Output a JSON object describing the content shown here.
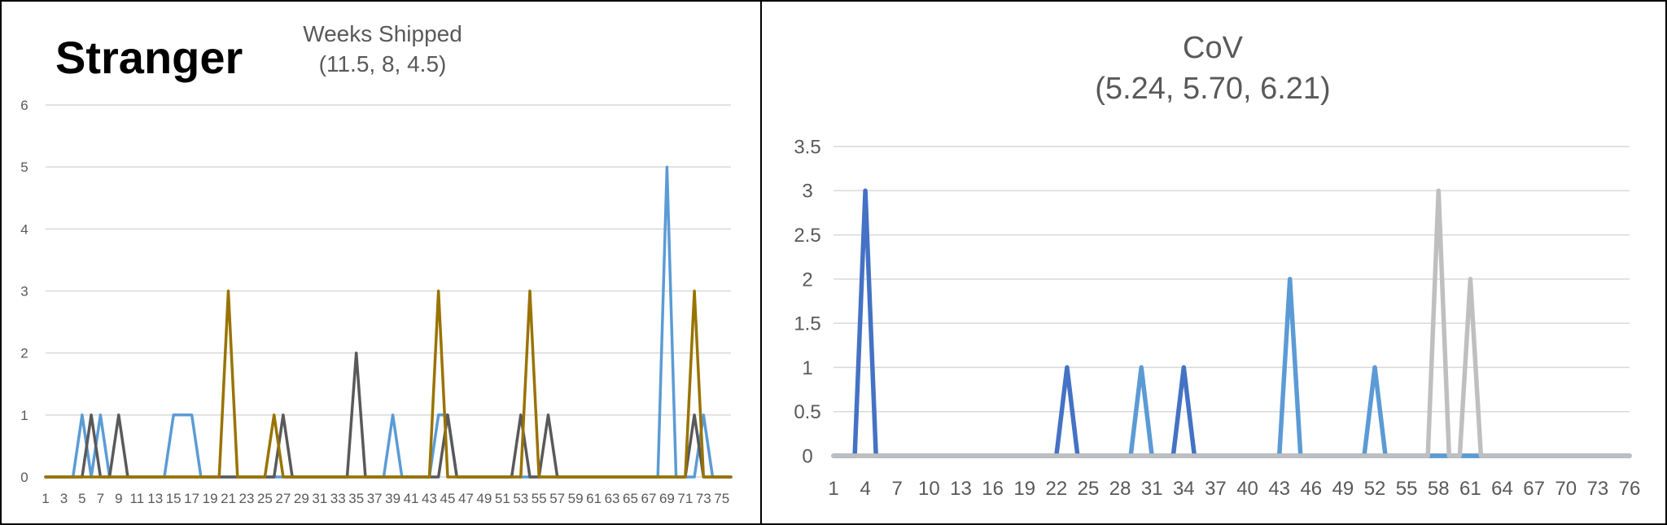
{
  "badge": "Stranger",
  "chart_data": [
    {
      "type": "line",
      "title": "Weeks Shipped",
      "subtitle": "(11.5, 8, 4.5)",
      "xlabel": "",
      "ylabel": "",
      "ylim": [
        0,
        6
      ],
      "yticks": [
        "0",
        "1",
        "2",
        "3",
        "4",
        "5",
        "6"
      ],
      "x": [
        1,
        2,
        3,
        4,
        5,
        6,
        7,
        8,
        9,
        10,
        11,
        12,
        13,
        14,
        15,
        16,
        17,
        18,
        19,
        20,
        21,
        22,
        23,
        24,
        25,
        26,
        27,
        28,
        29,
        30,
        31,
        32,
        33,
        34,
        35,
        36,
        37,
        38,
        39,
        40,
        41,
        42,
        43,
        44,
        45,
        46,
        47,
        48,
        49,
        50,
        51,
        52,
        53,
        54,
        55,
        56,
        57,
        58,
        59,
        60,
        61,
        62,
        63,
        64,
        65,
        66,
        67,
        68,
        69,
        70,
        71,
        72,
        73,
        74,
        75,
        76
      ],
      "xticks": [
        "1",
        "3",
        "5",
        "7",
        "9",
        "11",
        "13",
        "15",
        "17",
        "19",
        "21",
        "23",
        "25",
        "27",
        "29",
        "31",
        "33",
        "35",
        "37",
        "39",
        "41",
        "43",
        "45",
        "47",
        "49",
        "51",
        "53",
        "55",
        "57",
        "59",
        "61",
        "63",
        "65",
        "67",
        "69",
        "71",
        "73",
        "75"
      ],
      "grid": true,
      "series": [
        {
          "color": "#5B9BD5",
          "values": [
            0,
            0,
            0,
            0,
            1,
            0,
            1,
            0,
            0,
            0,
            0,
            0,
            0,
            0,
            1,
            1,
            1,
            0,
            0,
            0,
            0,
            0,
            0,
            0,
            0,
            0,
            0,
            0,
            0,
            0,
            0,
            0,
            0,
            0,
            0,
            0,
            0,
            0,
            1,
            0,
            0,
            0,
            0,
            1,
            1,
            0,
            0,
            0,
            0,
            0,
            0,
            0,
            0,
            0,
            0,
            0,
            0,
            0,
            0,
            0,
            0,
            0,
            0,
            0,
            0,
            0,
            0,
            0,
            5,
            0,
            0,
            0,
            1,
            0,
            0,
            0
          ]
        },
        {
          "color": "#595959",
          "values": [
            0,
            0,
            0,
            0,
            0,
            1,
            0,
            0,
            1,
            0,
            0,
            0,
            0,
            0,
            0,
            0,
            0,
            0,
            0,
            0,
            0,
            0,
            0,
            0,
            0,
            0,
            1,
            0,
            0,
            0,
            0,
            0,
            0,
            0,
            2,
            0,
            0,
            0,
            0,
            0,
            0,
            0,
            0,
            0,
            1,
            0,
            0,
            0,
            0,
            0,
            0,
            0,
            1,
            0,
            0,
            1,
            0,
            0,
            0,
            0,
            0,
            0,
            0,
            0,
            0,
            0,
            0,
            0,
            0,
            0,
            0,
            1,
            0,
            0,
            0,
            0
          ]
        },
        {
          "color": "#997300",
          "values": [
            0,
            0,
            0,
            0,
            0,
            0,
            0,
            0,
            0,
            0,
            0,
            0,
            0,
            0,
            0,
            0,
            0,
            0,
            0,
            0,
            3,
            0,
            0,
            0,
            0,
            1,
            0,
            0,
            0,
            0,
            0,
            0,
            0,
            0,
            0,
            0,
            0,
            0,
            0,
            0,
            0,
            0,
            0,
            3,
            0,
            0,
            0,
            0,
            0,
            0,
            0,
            0,
            0,
            3,
            0,
            0,
            0,
            0,
            0,
            0,
            0,
            0,
            0,
            0,
            0,
            0,
            0,
            0,
            0,
            0,
            0,
            3,
            0,
            0,
            0,
            0
          ]
        }
      ]
    },
    {
      "type": "line",
      "title": "CoV",
      "subtitle": "(5.24, 5.70, 6.21)",
      "xlabel": "",
      "ylabel": "",
      "ylim": [
        0,
        3.5
      ],
      "yticks": [
        "0",
        "0.5",
        "1",
        "1.5",
        "2",
        "2.5",
        "3",
        "3.5"
      ],
      "x": [
        1,
        2,
        3,
        4,
        5,
        6,
        7,
        8,
        9,
        10,
        11,
        12,
        13,
        14,
        15,
        16,
        17,
        18,
        19,
        20,
        21,
        22,
        23,
        24,
        25,
        26,
        27,
        28,
        29,
        30,
        31,
        32,
        33,
        34,
        35,
        36,
        37,
        38,
        39,
        40,
        41,
        42,
        43,
        44,
        45,
        46,
        47,
        48,
        49,
        50,
        51,
        52,
        53,
        54,
        55,
        56,
        57,
        58,
        59,
        60,
        61,
        62,
        63,
        64,
        65,
        66,
        67,
        68,
        69,
        70,
        71,
        72,
        73,
        74,
        75,
        76
      ],
      "xticks": [
        "1",
        "4",
        "7",
        "10",
        "13",
        "16",
        "19",
        "22",
        "25",
        "28",
        "31",
        "34",
        "37",
        "40",
        "43",
        "46",
        "49",
        "52",
        "55",
        "58",
        "61",
        "64",
        "67",
        "70",
        "73",
        "76"
      ],
      "grid": true,
      "series": [
        {
          "color": "#4472C4",
          "values": [
            0,
            0,
            0,
            3,
            0,
            0,
            0,
            0,
            0,
            0,
            0,
            0,
            0,
            0,
            0,
            0,
            0,
            0,
            0,
            0,
            0,
            0,
            1,
            0,
            0,
            0,
            0,
            0,
            0,
            0,
            0,
            0,
            0,
            1,
            0,
            0,
            0,
            0,
            0,
            0,
            0,
            0,
            0,
            0,
            0,
            0,
            0,
            0,
            0,
            0,
            0,
            0,
            0,
            0,
            0,
            0,
            0,
            0,
            0,
            0,
            0,
            0,
            0,
            0,
            0,
            0,
            0,
            0,
            0,
            0,
            0,
            0,
            0,
            0,
            0,
            0
          ]
        },
        {
          "color": "#5B9BD5",
          "values": [
            0,
            0,
            0,
            0,
            0,
            0,
            0,
            0,
            0,
            0,
            0,
            0,
            0,
            0,
            0,
            0,
            0,
            0,
            0,
            0,
            0,
            0,
            0,
            0,
            0,
            0,
            0,
            0,
            0,
            1,
            0,
            0,
            0,
            0,
            0,
            0,
            0,
            0,
            0,
            0,
            0,
            0,
            0,
            2,
            0,
            0,
            0,
            0,
            0,
            0,
            0,
            1,
            0,
            0,
            0,
            0,
            0,
            0,
            0,
            0,
            0,
            0,
            0,
            0,
            0,
            0,
            0,
            0,
            0,
            0,
            0,
            0,
            0,
            0,
            0,
            0
          ]
        },
        {
          "color": "#BFBFBF",
          "values": [
            0,
            0,
            0,
            0,
            0,
            0,
            0,
            0,
            0,
            0,
            0,
            0,
            0,
            0,
            0,
            0,
            0,
            0,
            0,
            0,
            0,
            0,
            0,
            0,
            0,
            0,
            0,
            0,
            0,
            0,
            0,
            0,
            0,
            0,
            0,
            0,
            0,
            0,
            0,
            0,
            0,
            0,
            0,
            0,
            0,
            0,
            0,
            0,
            0,
            0,
            0,
            0,
            0,
            0,
            0,
            0,
            0,
            3,
            0,
            0,
            2,
            0,
            0,
            0,
            0,
            0,
            0,
            0,
            0,
            0,
            0,
            0,
            0,
            0,
            0,
            0
          ]
        }
      ]
    }
  ]
}
